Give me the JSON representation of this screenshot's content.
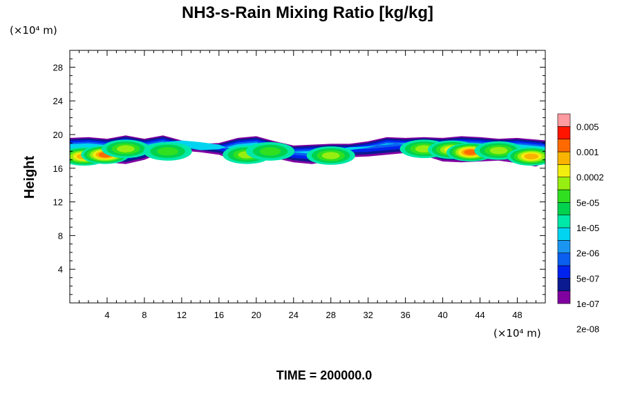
{
  "chart_data": {
    "type": "heatmap",
    "title": "NH3-s-Rain Mixing Ratio [kg/kg]",
    "ylabel": "Height",
    "xunit": "(×10⁴ m)",
    "yunit": "(×10⁴ m)",
    "footer": "TIME = 200000.0",
    "xlim": [
      0,
      51
    ],
    "ylim": [
      0,
      30
    ],
    "xticks": [
      "4",
      "8",
      "12",
      "16",
      "20",
      "24",
      "28",
      "32",
      "36",
      "40",
      "44",
      "48"
    ],
    "xtick_values": [
      4,
      8,
      12,
      16,
      20,
      24,
      28,
      32,
      36,
      40,
      44,
      48
    ],
    "yticks": [
      "4",
      "8",
      "12",
      "16",
      "20",
      "24",
      "28"
    ],
    "ytick_values": [
      4,
      8,
      12,
      16,
      20,
      24,
      28
    ],
    "colorbar": {
      "labels": [
        "0.005",
        "0.001",
        "0.0002",
        "5e-05",
        "1e-05",
        "2e-06",
        "5e-07",
        "1e-07",
        "2e-08"
      ],
      "colors": [
        "#8000a0",
        "#0b1a90",
        "#0022ee",
        "#0a5ef0",
        "#1a96f0",
        "#00d4f0",
        "#00e8a8",
        "#00d24e",
        "#30e020",
        "#98ee10",
        "#f2ee10",
        "#f8b400",
        "#ff6a00",
        "#ff1400",
        "#ff9aa0"
      ]
    },
    "layer_profile": {
      "x": [
        0,
        2,
        4,
        6,
        8,
        10,
        12,
        14,
        16,
        18,
        20,
        22,
        24,
        26,
        28,
        30,
        32,
        34,
        36,
        38,
        40,
        42,
        44,
        46,
        48,
        50,
        51
      ],
      "top": [
        19.6,
        19.7,
        19.5,
        19.9,
        19.5,
        19.9,
        19.3,
        18.9,
        19.0,
        19.6,
        19.8,
        19.2,
        18.7,
        18.8,
        18.9,
        18.9,
        19.2,
        19.7,
        19.6,
        19.7,
        19.6,
        19.8,
        19.7,
        19.5,
        19.6,
        19.4,
        19.3
      ],
      "bottom": [
        16.6,
        16.4,
        16.7,
        16.5,
        17.0,
        17.9,
        18.1,
        17.9,
        17.6,
        16.8,
        16.7,
        17.2,
        16.7,
        16.5,
        16.9,
        17.3,
        17.4,
        17.6,
        17.8,
        17.5,
        16.8,
        16.7,
        16.8,
        16.9,
        16.6,
        16.2,
        16.7
      ]
    },
    "maxima": [
      {
        "x": 1.5,
        "y": 17.4,
        "level": 11
      },
      {
        "x": 3.8,
        "y": 17.6,
        "level": 12
      },
      {
        "x": 6.0,
        "y": 18.3,
        "level": 9
      },
      {
        "x": 10.5,
        "y": 18.0,
        "level": 8
      },
      {
        "x": 19.0,
        "y": 17.6,
        "level": 9
      },
      {
        "x": 21.5,
        "y": 18.0,
        "level": 8
      },
      {
        "x": 28.0,
        "y": 17.5,
        "level": 9
      },
      {
        "x": 38.0,
        "y": 18.3,
        "level": 9
      },
      {
        "x": 41.0,
        "y": 18.2,
        "level": 10
      },
      {
        "x": 43.0,
        "y": 17.9,
        "level": 12
      },
      {
        "x": 46.0,
        "y": 18.1,
        "level": 9
      },
      {
        "x": 49.5,
        "y": 17.4,
        "level": 11
      }
    ]
  }
}
